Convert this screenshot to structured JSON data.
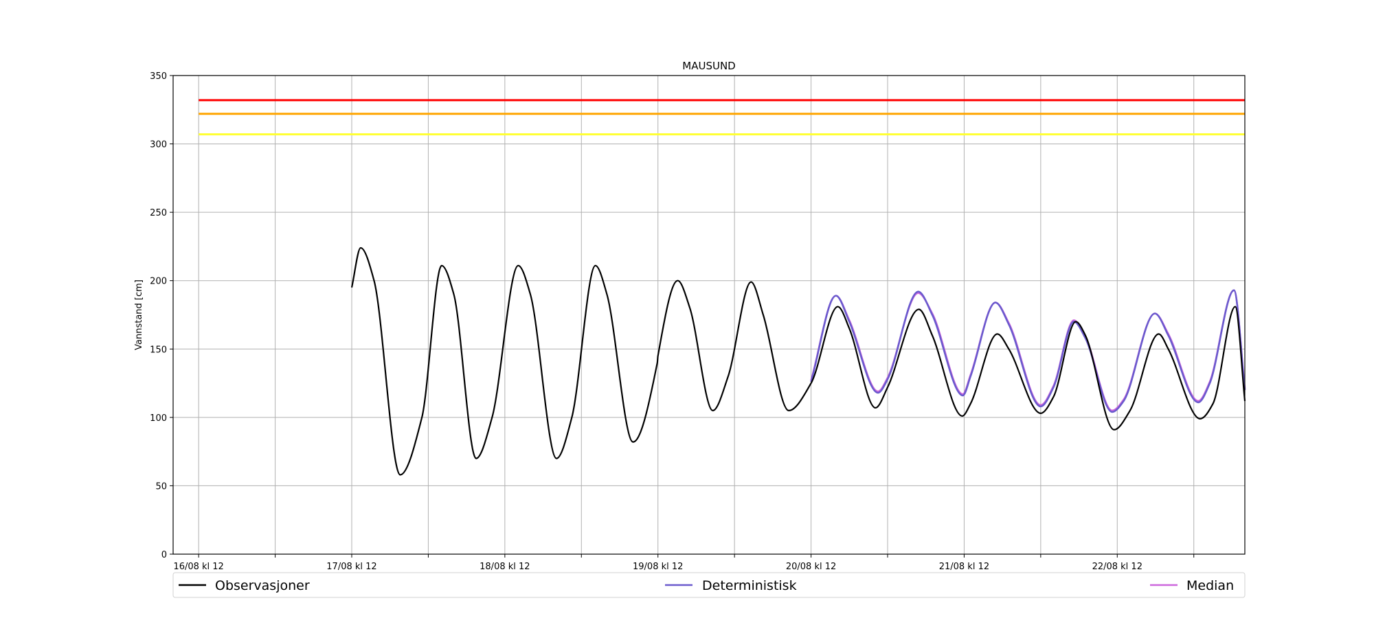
{
  "chart_data": {
    "type": "line",
    "title": "MAUSUND",
    "xlabel": "",
    "ylabel": "Vannstand [cm]",
    "ylim": [
      0,
      350
    ],
    "xlim_hours": [
      -4,
      164
    ],
    "yticks": [
      0,
      50,
      100,
      150,
      200,
      250,
      300,
      350
    ],
    "xticks": [
      {
        "t": 0,
        "label": "16/08 kl 12"
      },
      {
        "t": 24,
        "label": "17/08 kl 12"
      },
      {
        "t": 48,
        "label": "18/08 kl 12"
      },
      {
        "t": 72,
        "label": "19/08 kl 12"
      },
      {
        "t": 96,
        "label": "20/08 kl 12"
      },
      {
        "t": 120,
        "label": "21/08 kl 12"
      },
      {
        "t": 144,
        "label": "22/08 kl 12"
      }
    ],
    "minor_xticks": [
      12,
      36,
      60,
      84,
      108,
      132,
      156
    ],
    "grid": true,
    "thresholds": [
      {
        "value": 332,
        "color": "#ff0000"
      },
      {
        "value": 322,
        "color": "#ffa500"
      },
      {
        "value": 307,
        "color": "#ffff33"
      }
    ],
    "series": [
      {
        "name": "Observasjoner",
        "color": "#000000",
        "points": [
          [
            24,
            195
          ],
          [
            25.4,
            224
          ],
          [
            27.5,
            200
          ],
          [
            31.6,
            58
          ],
          [
            35,
            100
          ],
          [
            38.1,
            211
          ],
          [
            40,
            190
          ],
          [
            43.5,
            70
          ],
          [
            46,
            100
          ],
          [
            50.1,
            211
          ],
          [
            52,
            190
          ],
          [
            56.1,
            70
          ],
          [
            58.5,
            100
          ],
          [
            62.2,
            211
          ],
          [
            64,
            190
          ],
          [
            68.1,
            82
          ],
          [
            71.9,
            140
          ],
          [
            72,
            145
          ],
          [
            75.1,
            200
          ],
          [
            77,
            180
          ],
          [
            80.6,
            105
          ],
          [
            83,
            130
          ],
          [
            86.6,
            199
          ],
          [
            88.5,
            175
          ],
          [
            92.5,
            105
          ],
          [
            96,
            125
          ],
          [
            100.2,
            181
          ],
          [
            102,
            165
          ],
          [
            106.1,
            107
          ],
          [
            108,
            122
          ],
          [
            112.9,
            179
          ],
          [
            115,
            160
          ],
          [
            119.7,
            101
          ],
          [
            121,
            110
          ],
          [
            125.2,
            161
          ],
          [
            127,
            150
          ],
          [
            132,
            103
          ],
          [
            134,
            115
          ],
          [
            137.5,
            170
          ],
          [
            139,
            160
          ],
          [
            143.5,
            91
          ],
          [
            146,
            105
          ],
          [
            150.5,
            161
          ],
          [
            152,
            150
          ],
          [
            157,
            99
          ],
          [
            159,
            110
          ],
          [
            162.5,
            181
          ],
          [
            164,
            112
          ]
        ]
      },
      {
        "name": "Deterministisk",
        "color": "#6a5acd",
        "points": [
          [
            96,
            126
          ],
          [
            99.9,
            189
          ],
          [
            102,
            170
          ],
          [
            106.5,
            118
          ],
          [
            108,
            128
          ],
          [
            112.8,
            192
          ],
          [
            115,
            175
          ],
          [
            119.8,
            116
          ],
          [
            121,
            130
          ],
          [
            124.9,
            184
          ],
          [
            127,
            168
          ],
          [
            132,
            108
          ],
          [
            134,
            122
          ],
          [
            137.2,
            170
          ],
          [
            139,
            158
          ],
          [
            143.2,
            104
          ],
          [
            145,
            112
          ],
          [
            149.9,
            176
          ],
          [
            152,
            160
          ],
          [
            156.7,
            111
          ],
          [
            158.5,
            125
          ],
          [
            162.3,
            193
          ],
          [
            164,
            120
          ]
        ]
      },
      {
        "name": "Median",
        "color": "#cc66dd",
        "points": [
          [
            96,
            127
          ],
          [
            99.9,
            189
          ],
          [
            102,
            171
          ],
          [
            106.5,
            119
          ],
          [
            108,
            129
          ],
          [
            112.8,
            191
          ],
          [
            115,
            176
          ],
          [
            119.8,
            117
          ],
          [
            121,
            131
          ],
          [
            124.9,
            184
          ],
          [
            127,
            169
          ],
          [
            132,
            109
          ],
          [
            134,
            123
          ],
          [
            137.2,
            171
          ],
          [
            139,
            159
          ],
          [
            143.2,
            105
          ],
          [
            145,
            113
          ],
          [
            149.9,
            176
          ],
          [
            152,
            161
          ],
          [
            156.7,
            112
          ],
          [
            158.5,
            126
          ],
          [
            162.3,
            193
          ],
          [
            164,
            121
          ]
        ]
      }
    ],
    "legend_placement": "bottom",
    "legend": [
      {
        "label": "Observasjoner",
        "color": "#000000"
      },
      {
        "label": "Deterministisk",
        "color": "#6a5acd"
      },
      {
        "label": "Median",
        "color": "#cc66dd"
      }
    ]
  }
}
